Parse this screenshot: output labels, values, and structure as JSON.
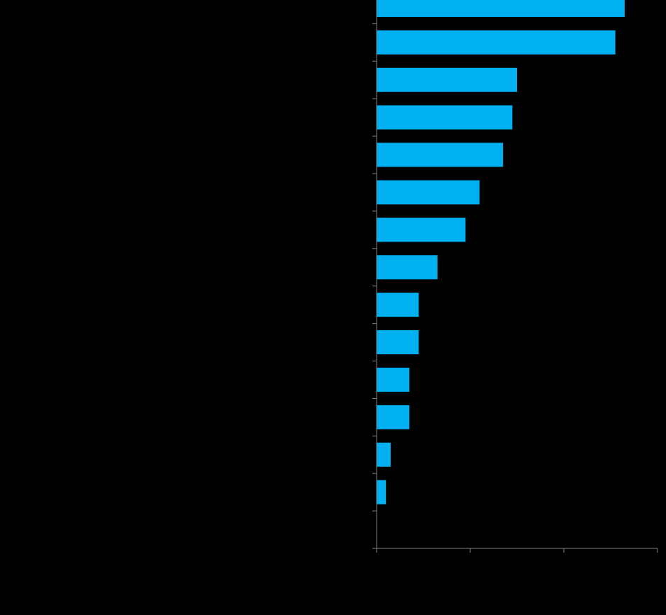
{
  "chart_data": {
    "type": "bar",
    "orientation": "horizontal",
    "title": "",
    "xlabel": "",
    "ylabel": "",
    "categories": [
      "",
      "",
      "",
      "",
      "",
      "",
      "",
      "",
      "",
      "",
      "",
      "",
      "",
      "",
      ""
    ],
    "values": [
      26.5,
      25.5,
      15.0,
      14.5,
      13.5,
      11.0,
      9.5,
      6.5,
      4.5,
      4.5,
      3.5,
      3.5,
      1.5,
      1.0,
      0
    ],
    "xlim": [
      0,
      30
    ],
    "x_ticks": [
      0,
      10,
      20,
      30
    ],
    "grid": false,
    "colors": {
      "background": "#000000",
      "bar": "#00B0F0",
      "axis": "#808080"
    }
  }
}
